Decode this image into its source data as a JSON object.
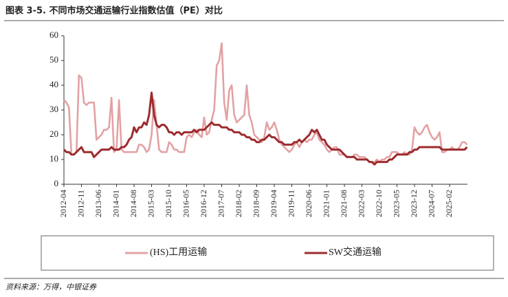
{
  "chart_data": {
    "type": "line",
    "title": "图表 3-5. 不同市场交通运输行业指数估值（PE）对比",
    "source": "资料来源：万得，中银证券",
    "categories": [
      "2012-04",
      null,
      null,
      null,
      null,
      null,
      null,
      "2012-11",
      null,
      null,
      null,
      null,
      null,
      null,
      "2013-06",
      null,
      null,
      null,
      null,
      null,
      null,
      "2014-01",
      null,
      null,
      null,
      null,
      null,
      null,
      "2014-08",
      null,
      null,
      null,
      null,
      null,
      null,
      "2015-03",
      null,
      null,
      null,
      null,
      null,
      null,
      "2015-10",
      null,
      null,
      null,
      null,
      null,
      null,
      "2016-05",
      null,
      null,
      null,
      null,
      null,
      null,
      "2016-12",
      null,
      null,
      null,
      null,
      null,
      null,
      "2017-07",
      null,
      null,
      null,
      null,
      null,
      null,
      "2018-02",
      null,
      null,
      null,
      null,
      null,
      null,
      "2018-09",
      null,
      null,
      null,
      null,
      null,
      null,
      "2019-04",
      null,
      null,
      null,
      null,
      null,
      null,
      "2019-11",
      null,
      null,
      null,
      null,
      null,
      null,
      "2020-06",
      null,
      null,
      null,
      null,
      null,
      null,
      "2021-01",
      null,
      null,
      null,
      null,
      null,
      null,
      "2021-08",
      null,
      null,
      null,
      null,
      null,
      null,
      "2022-03",
      null,
      null,
      null,
      null,
      null,
      null,
      "2022-10",
      null,
      null,
      null,
      null,
      null,
      null,
      "2023-05",
      null,
      null,
      null,
      null,
      null,
      null,
      "2023-12",
      null,
      null,
      null,
      null,
      null,
      null,
      "2024-07",
      null,
      null,
      null,
      null,
      null,
      null,
      "2025-02",
      null,
      null,
      null,
      null,
      null,
      null,
      null
    ],
    "series": [
      {
        "name": "(HS)工用运输",
        "color": "#e3a1a3",
        "values": [
          34,
          33,
          31,
          12,
          12,
          13,
          44,
          43,
          33,
          32,
          33,
          33,
          33,
          18,
          19,
          20,
          22,
          22,
          23,
          35,
          13,
          14,
          34,
          14,
          13,
          13,
          13,
          13,
          13,
          13,
          16,
          16,
          15,
          13,
          14,
          20,
          34,
          24,
          14,
          13,
          13,
          13,
          17,
          16,
          14,
          14,
          13,
          13,
          13,
          19,
          20,
          19,
          21,
          22,
          20,
          19,
          27,
          20,
          21,
          26,
          30,
          48,
          50,
          57,
          33,
          26,
          38,
          40,
          28,
          25,
          26,
          27,
          28,
          40,
          28,
          25,
          20,
          19,
          18,
          17,
          19,
          25,
          22,
          23,
          25,
          22,
          18,
          16,
          15,
          14,
          13,
          14,
          16,
          17,
          15,
          17,
          18,
          17,
          18,
          18,
          20,
          21,
          18,
          17,
          16,
          14,
          13,
          14,
          15,
          15,
          12,
          12,
          12,
          11,
          11,
          11,
          12,
          12,
          11,
          11,
          11,
          10,
          9,
          9,
          9,
          10,
          9,
          10,
          10,
          11,
          11,
          13,
          13,
          13,
          12,
          12,
          13,
          12,
          12,
          14,
          23,
          21,
          20,
          21,
          23,
          24,
          21,
          19,
          18,
          19,
          21,
          13,
          13,
          14,
          14,
          15,
          14,
          14,
          15,
          17,
          17,
          16
        ]
      },
      {
        "name": "SW交通运输",
        "color": "#9c2b2e",
        "values": [
          14,
          13,
          13,
          12,
          12,
          13,
          14,
          15,
          13,
          13,
          13,
          13,
          11,
          12,
          13,
          14,
          14,
          14,
          14,
          15,
          14,
          14,
          14,
          15,
          15,
          16,
          18,
          19,
          23,
          21,
          23,
          23,
          25,
          24,
          28,
          37,
          28,
          24,
          23,
          24,
          24,
          23,
          21,
          21,
          20,
          21,
          21,
          20,
          21,
          21,
          21,
          21,
          22,
          21,
          22,
          22,
          22,
          23,
          24,
          25,
          24,
          24,
          24,
          23,
          23,
          23,
          22,
          22,
          21,
          21,
          21,
          20,
          20,
          19,
          19,
          18,
          18,
          17,
          17,
          18,
          18,
          19,
          20,
          19,
          19,
          18,
          17,
          17,
          16,
          16,
          16,
          16,
          17,
          17,
          18,
          17,
          18,
          19,
          20,
          22,
          21,
          22,
          20,
          18,
          18,
          16,
          15,
          14,
          14,
          14,
          14,
          13,
          12,
          11,
          11,
          11,
          11,
          10,
          10,
          10,
          10,
          10,
          9,
          9,
          8,
          9,
          9,
          9,
          9,
          9,
          10,
          10,
          11,
          12,
          12,
          12,
          12,
          12,
          13,
          13,
          14,
          14,
          15,
          15,
          15,
          15,
          15,
          15,
          15,
          15,
          15,
          14,
          14,
          14,
          14,
          14,
          14,
          14,
          14,
          14,
          14,
          15
        ]
      }
    ],
    "ylim": [
      0,
      60
    ],
    "yticks": [
      0,
      10,
      20,
      30,
      40,
      50,
      60
    ],
    "grid": false,
    "legend": "bottom"
  }
}
